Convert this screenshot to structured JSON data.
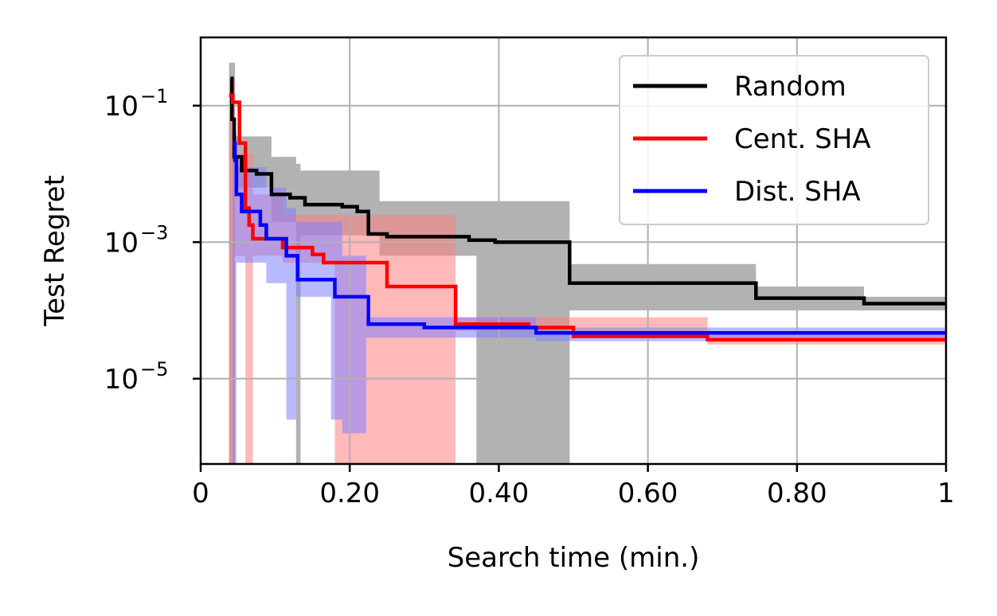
{
  "chart_data": {
    "type": "line",
    "xlabel": "Search time (min.)",
    "ylabel": "Test Regret",
    "xlim": [
      0,
      1
    ],
    "ylim_log10": [
      -6.25,
      0.0
    ],
    "yscale": "log",
    "grid": true,
    "legend_position": "top-right",
    "x_ticks": [
      {
        "value": 0,
        "label": "0"
      },
      {
        "value": 0.2,
        "label": "0.20"
      },
      {
        "value": 0.4,
        "label": "0.40"
      },
      {
        "value": 0.6,
        "label": "0.60"
      },
      {
        "value": 0.8,
        "label": "0.80"
      },
      {
        "value": 1,
        "label": "1"
      }
    ],
    "y_ticks": [
      {
        "exp": -1,
        "base": "10",
        "sup": "−1"
      },
      {
        "exp": -3,
        "base": "10",
        "sup": "−3"
      },
      {
        "exp": -5,
        "base": "10",
        "sup": "−5"
      }
    ],
    "series": [
      {
        "name": "Random",
        "color": "#000000",
        "band_color": "#b2b2b2",
        "band_opacity": 1.0,
        "median_log10": [
          [
            0.04,
            -0.6
          ],
          [
            0.042,
            -0.6
          ],
          [
            0.042,
            -1.2
          ],
          [
            0.045,
            -1.2
          ],
          [
            0.045,
            -1.75
          ],
          [
            0.055,
            -1.75
          ],
          [
            0.055,
            -1.95
          ],
          [
            0.075,
            -1.95
          ],
          [
            0.075,
            -2.0
          ],
          [
            0.095,
            -2.0
          ],
          [
            0.095,
            -2.3
          ],
          [
            0.12,
            -2.3
          ],
          [
            0.12,
            -2.35
          ],
          [
            0.14,
            -2.35
          ],
          [
            0.14,
            -2.45
          ],
          [
            0.19,
            -2.45
          ],
          [
            0.19,
            -2.48
          ],
          [
            0.21,
            -2.48
          ],
          [
            0.21,
            -2.55
          ],
          [
            0.225,
            -2.55
          ],
          [
            0.225,
            -2.88
          ],
          [
            0.25,
            -2.88
          ],
          [
            0.25,
            -2.92
          ],
          [
            0.36,
            -2.92
          ],
          [
            0.36,
            -2.97
          ],
          [
            0.395,
            -2.97
          ],
          [
            0.395,
            -3.0
          ],
          [
            0.495,
            -3.0
          ],
          [
            0.495,
            -3.6
          ],
          [
            0.745,
            -3.6
          ],
          [
            0.745,
            -3.82
          ],
          [
            0.89,
            -3.82
          ],
          [
            0.89,
            -3.9
          ],
          [
            1.0,
            -3.9
          ]
        ],
        "band_log10": [
          [
            0.038,
            -0.37,
            -6.25
          ],
          [
            0.046,
            -0.37,
            -6.25
          ],
          [
            0.046,
            -1.45,
            -2.2
          ],
          [
            0.095,
            -1.45,
            -2.2
          ],
          [
            0.095,
            -1.75,
            -2.7
          ],
          [
            0.128,
            -1.75,
            -2.7
          ],
          [
            0.128,
            -1.85,
            -6.25
          ],
          [
            0.134,
            -1.85,
            -6.25
          ],
          [
            0.134,
            -1.95,
            -2.9
          ],
          [
            0.24,
            -1.95,
            -2.9
          ],
          [
            0.24,
            -2.4,
            -3.2
          ],
          [
            0.37,
            -2.4,
            -3.2
          ],
          [
            0.37,
            -2.4,
            -6.25
          ],
          [
            0.495,
            -2.4,
            -6.25
          ],
          [
            0.495,
            -3.32,
            -4.0
          ],
          [
            0.745,
            -3.32,
            -4.0
          ],
          [
            0.745,
            -3.65,
            -4.0
          ],
          [
            0.89,
            -3.65,
            -4.0
          ],
          [
            0.89,
            -3.8,
            -4.0
          ],
          [
            1.0,
            -3.8,
            -4.0
          ]
        ]
      },
      {
        "name": "Cent. SHA",
        "color": "#ff0000",
        "band_color": "#ff8080",
        "band_opacity": 0.55,
        "median_log10": [
          [
            0.038,
            -0.85
          ],
          [
            0.043,
            -0.85
          ],
          [
            0.043,
            -0.95
          ],
          [
            0.052,
            -0.95
          ],
          [
            0.052,
            -1.55
          ],
          [
            0.06,
            -1.55
          ],
          [
            0.06,
            -2.5
          ],
          [
            0.065,
            -2.5
          ],
          [
            0.065,
            -2.75
          ],
          [
            0.07,
            -2.75
          ],
          [
            0.07,
            -2.95
          ],
          [
            0.11,
            -2.95
          ],
          [
            0.11,
            -3.08
          ],
          [
            0.15,
            -3.08
          ],
          [
            0.15,
            -3.18
          ],
          [
            0.165,
            -3.18
          ],
          [
            0.165,
            -3.3
          ],
          [
            0.25,
            -3.3
          ],
          [
            0.25,
            -3.65
          ],
          [
            0.342,
            -3.65
          ],
          [
            0.342,
            -4.2
          ],
          [
            0.44,
            -4.2
          ],
          [
            0.44,
            -4.25
          ],
          [
            0.5,
            -4.25
          ],
          [
            0.5,
            -4.38
          ],
          [
            0.68,
            -4.38
          ],
          [
            0.68,
            -4.43
          ],
          [
            1.0,
            -4.43
          ]
        ],
        "band_log10": [
          [
            0.038,
            -0.6,
            -6.25
          ],
          [
            0.046,
            -0.6,
            -6.25
          ],
          [
            0.046,
            -1.7,
            -3.2
          ],
          [
            0.06,
            -1.7,
            -3.2
          ],
          [
            0.06,
            -1.7,
            -6.25
          ],
          [
            0.07,
            -1.7,
            -6.25
          ],
          [
            0.07,
            -2.3,
            -3.2
          ],
          [
            0.11,
            -2.3,
            -3.2
          ],
          [
            0.11,
            -2.6,
            -3.3
          ],
          [
            0.18,
            -2.6,
            -3.3
          ],
          [
            0.18,
            -2.6,
            -6.25
          ],
          [
            0.342,
            -2.6,
            -6.25
          ],
          [
            0.342,
            -4.1,
            -4.3
          ],
          [
            0.68,
            -4.1,
            -4.3
          ],
          [
            0.68,
            -4.35,
            -4.5
          ],
          [
            1.0,
            -4.35,
            -4.5
          ]
        ]
      },
      {
        "name": "Dist. SHA",
        "color": "#0000ff",
        "band_color": "#8080ff",
        "band_opacity": 0.55,
        "median_log10": [
          [
            0.043,
            -1.55
          ],
          [
            0.046,
            -1.55
          ],
          [
            0.046,
            -1.8
          ],
          [
            0.048,
            -1.8
          ],
          [
            0.048,
            -2.3
          ],
          [
            0.055,
            -2.3
          ],
          [
            0.055,
            -2.55
          ],
          [
            0.08,
            -2.55
          ],
          [
            0.08,
            -2.75
          ],
          [
            0.088,
            -2.75
          ],
          [
            0.088,
            -2.95
          ],
          [
            0.115,
            -2.95
          ],
          [
            0.115,
            -3.2
          ],
          [
            0.13,
            -3.2
          ],
          [
            0.13,
            -3.55
          ],
          [
            0.18,
            -3.55
          ],
          [
            0.18,
            -3.8
          ],
          [
            0.225,
            -3.8
          ],
          [
            0.225,
            -4.2
          ],
          [
            0.3,
            -4.2
          ],
          [
            0.3,
            -4.25
          ],
          [
            0.45,
            -4.25
          ],
          [
            0.45,
            -4.33
          ],
          [
            1.0,
            -4.33
          ]
        ],
        "band_log10": [
          [
            0.043,
            -1.4,
            -6.25
          ],
          [
            0.048,
            -1.4,
            -6.25
          ],
          [
            0.048,
            -1.9,
            -3.3
          ],
          [
            0.088,
            -1.9,
            -3.3
          ],
          [
            0.088,
            -2.2,
            -3.6
          ],
          [
            0.115,
            -2.2,
            -3.6
          ],
          [
            0.115,
            -2.5,
            -5.6
          ],
          [
            0.128,
            -2.5,
            -5.6
          ],
          [
            0.128,
            -2.7,
            -3.8
          ],
          [
            0.175,
            -2.7,
            -3.8
          ],
          [
            0.175,
            -2.7,
            -5.6
          ],
          [
            0.19,
            -2.7,
            -5.6
          ],
          [
            0.19,
            -3.2,
            -5.8
          ],
          [
            0.222,
            -3.2,
            -5.8
          ],
          [
            0.222,
            -4.1,
            -4.4
          ],
          [
            0.45,
            -4.1,
            -4.4
          ],
          [
            0.45,
            -4.25,
            -4.45
          ],
          [
            1.0,
            -4.25,
            -4.45
          ]
        ]
      }
    ]
  }
}
